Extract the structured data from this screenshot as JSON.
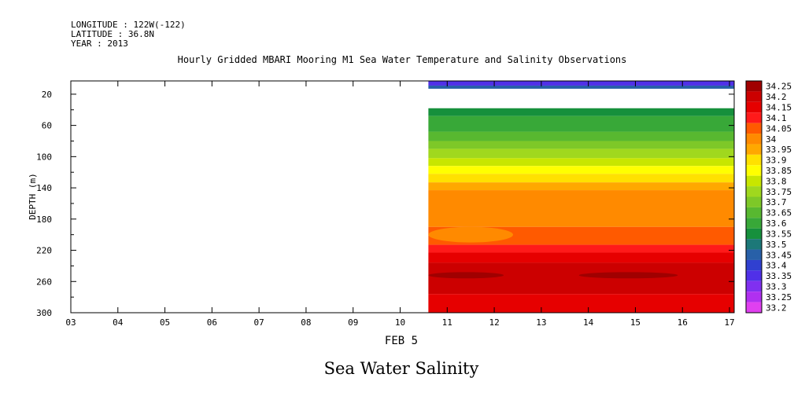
{
  "header": {
    "longitude": "LONGITUDE : 122W(-122)",
    "latitude": "LATITUDE : 36.8N",
    "year": "YEAR : 2013"
  },
  "chart_data": {
    "type": "heatmap",
    "title": "Hourly Gridded MBARI Mooring M1 Sea Water Temperature and Salinity Observations",
    "subtitle": "Sea Water Salinity",
    "xlabel": "FEB  5",
    "ylabel": "DEPTH (m)",
    "x_ticks": [
      "03",
      "04",
      "05",
      "06",
      "07",
      "08",
      "09",
      "10",
      "11",
      "12",
      "13",
      "14",
      "15",
      "16",
      "17"
    ],
    "xlim": [
      3,
      17.1
    ],
    "y_ticks": [
      "20",
      "60",
      "100",
      "140",
      "180",
      "220",
      "260",
      "300"
    ],
    "ylim": [
      300,
      3
    ],
    "data_start_day": 10.6,
    "colorbar_levels": [
      "34.25",
      "34.2",
      "34.15",
      "34.1",
      "34.05",
      "34",
      "33.95",
      "33.9",
      "33.85",
      "33.8",
      "33.75",
      "33.7",
      "33.65",
      "33.6",
      "33.55",
      "33.5",
      "33.45",
      "33.4",
      "33.35",
      "33.3",
      "33.25",
      "33.2"
    ],
    "colorbar_colors": [
      "#a00000",
      "#cc0000",
      "#e60000",
      "#ff1a1a",
      "#ff5a00",
      "#ff8a00",
      "#ffa800",
      "#ffe100",
      "#ffff00",
      "#c8e600",
      "#a0d81e",
      "#7ec828",
      "#58b830",
      "#38a838",
      "#16903c",
      "#1c7878",
      "#2860a8",
      "#3040d0",
      "#5030e8",
      "#8030f0",
      "#b030f0",
      "#e040f0"
    ],
    "bands": [
      {
        "top": 3,
        "bottom": 9,
        "value": "33.35"
      },
      {
        "top": 9,
        "bottom": 13,
        "value": "33.45"
      },
      {
        "top": 38,
        "bottom": 48,
        "value": "33.55"
      },
      {
        "top": 48,
        "bottom": 68,
        "value": "33.6"
      },
      {
        "top": 68,
        "bottom": 80,
        "value": "33.65"
      },
      {
        "top": 80,
        "bottom": 90,
        "value": "33.7"
      },
      {
        "top": 90,
        "bottom": 102,
        "value": "33.75"
      },
      {
        "top": 102,
        "bottom": 112,
        "value": "33.8"
      },
      {
        "top": 112,
        "bottom": 122,
        "value": "33.85"
      },
      {
        "top": 122,
        "bottom": 133,
        "value": "33.9"
      },
      {
        "top": 133,
        "bottom": 143,
        "value": "33.95"
      },
      {
        "top": 143,
        "bottom": 190,
        "value": "34"
      },
      {
        "top": 190,
        "bottom": 213,
        "value": "34.05"
      },
      {
        "top": 213,
        "bottom": 223,
        "value": "34.1"
      },
      {
        "top": 223,
        "bottom": 236,
        "value": "34.15"
      },
      {
        "top": 236,
        "bottom": 276,
        "value": "34.2"
      },
      {
        "top": 276,
        "bottom": 300,
        "value": "34.15"
      }
    ],
    "patches": [
      {
        "value": "34.25",
        "x": [
          10.6,
          12.2
        ],
        "depth": 252,
        "half_height": 4
      },
      {
        "value": "34.25",
        "x": [
          13.8,
          15.9
        ],
        "depth": 252,
        "half_height": 4
      },
      {
        "value": "34",
        "x": [
          10.6,
          12.4
        ],
        "depth": 200,
        "half_height": 10
      }
    ]
  }
}
